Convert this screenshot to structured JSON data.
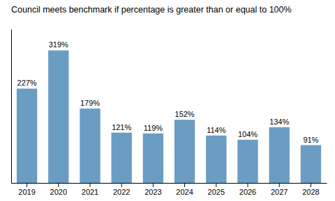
{
  "chart_data": {
    "type": "bar",
    "title": "Council meets benchmark if percentage is greater than or equal to 100%",
    "categories": [
      "2019",
      "2020",
      "2021",
      "2022",
      "2023",
      "2024",
      "2025",
      "2026",
      "2027",
      "2028"
    ],
    "values": [
      227,
      319,
      179,
      121,
      119,
      152,
      114,
      104,
      134,
      91
    ],
    "value_labels": [
      "227%",
      "319%",
      "179%",
      "121%",
      "119%",
      "152%",
      "114%",
      "104%",
      "134%",
      "91%"
    ],
    "color": "#6B9DC2",
    "ylim": [
      0,
      370
    ],
    "yticks": [],
    "grid": false,
    "data_labels": true,
    "tick_labels": "x"
  }
}
